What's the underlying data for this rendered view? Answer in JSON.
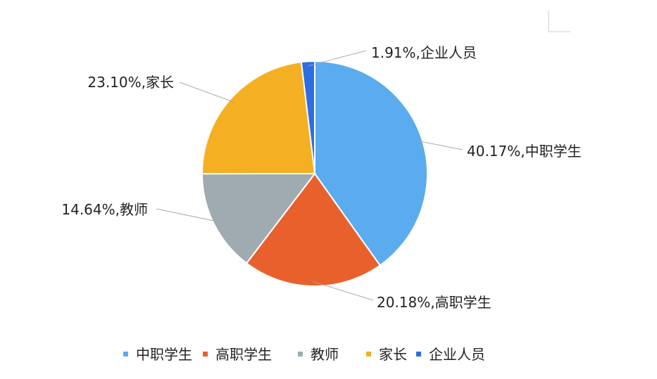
{
  "chart_data": {
    "type": "pie",
    "title": "",
    "start_angle": "12 o'clock, clockwise",
    "slices": [
      {
        "name": "中职学生",
        "value": 40.17,
        "label": "40.17%,中职学生",
        "color": "#5BABEF"
      },
      {
        "name": "高职学生",
        "value": 20.18,
        "label": "20.18%,高职学生",
        "color": "#E8612D"
      },
      {
        "name": "教师",
        "value": 14.64,
        "label": "14.64%,教师",
        "color": "#9FABB1"
      },
      {
        "name": "家长",
        "value": 23.1,
        "label": "23.10%,家长",
        "color": "#F5AF23"
      },
      {
        "name": "企业人员",
        "value": 1.91,
        "label": "1.91%,企业人员",
        "color": "#2C6FE0"
      }
    ],
    "legend": {
      "placement": "bottom"
    }
  }
}
